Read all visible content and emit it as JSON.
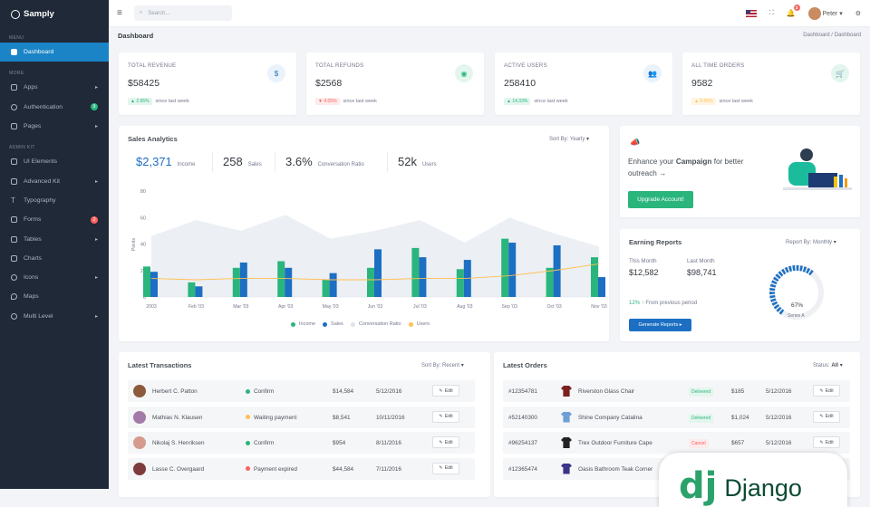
{
  "brand": "Samply",
  "sidebar": {
    "menu_label": "MENU",
    "more_label": "MORE",
    "admin_label": "ADMIN KIT",
    "dashboard": "Dashboard",
    "apps": "Apps",
    "authentication": "Authentication",
    "auth_badge": "9",
    "pages": "Pages",
    "ui_elements": "UI Elements",
    "advanced_kit": "Advanced Kit",
    "typography": "Typography",
    "forms": "Forms",
    "forms_badge": "2",
    "tables": "Tables",
    "charts": "Charts",
    "icons": "Icons",
    "maps": "Maps",
    "multi_level": "Multi Level"
  },
  "topbar": {
    "search_placeholder": "Search...",
    "notif_count": "3",
    "user": "Peter"
  },
  "page": {
    "title": "Dashboard",
    "crumb1": "Dashboard",
    "crumb_sep": "/",
    "crumb2": "Dashboard"
  },
  "stats": [
    {
      "label": "TOTAL REVENUE",
      "value": "$58425",
      "change": "2.65%",
      "since": "since last week",
      "color": "#2ab57d"
    },
    {
      "label": "TOTAL REFUNDS",
      "value": "$2568",
      "change": "4.05%",
      "since": "since last week",
      "color": "#fd625e"
    },
    {
      "label": "ACTIVE USERS",
      "value": "258410",
      "change": "14.33%",
      "since": "since last week",
      "color": "#2ab57d"
    },
    {
      "label": "ALL TIME ORDERS",
      "value": "9582",
      "change": "0.55%",
      "since": "since last week",
      "color": "#ffbf53"
    }
  ],
  "analytics": {
    "title": "Sales Analytics",
    "sort_label": "Sort By:",
    "sort_value": "Yearly",
    "kpis": [
      {
        "num": "$2,371",
        "label": "Income"
      },
      {
        "num": "258",
        "label": "Sales"
      },
      {
        "num": "3.6%",
        "label": "Conversation Ratio"
      },
      {
        "num": "52k",
        "label": "Users"
      }
    ],
    "legend": [
      "Income",
      "Sales",
      "Conversation Ratio",
      "Users"
    ]
  },
  "chart_data": {
    "type": "bar",
    "title": "Sales Analytics",
    "ylabel": "Points",
    "ylim": [
      0,
      80
    ],
    "yticks": [
      "0",
      "20",
      "40",
      "60",
      "80"
    ],
    "categories": [
      "2003",
      "Feb '03",
      "Mar '03",
      "Apr '03",
      "May '03",
      "Jun '03",
      "Jul '03",
      "Aug '03",
      "Sep '03",
      "Oct '03",
      "Nov '03"
    ],
    "series": [
      {
        "name": "Income",
        "type": "bar",
        "color": "#2ab57d",
        "values": [
          23,
          11,
          22,
          27,
          13,
          22,
          37,
          21,
          44,
          22,
          30
        ]
      },
      {
        "name": "Sales",
        "type": "bar",
        "color": "#1c6fc2",
        "values": [
          19,
          8,
          26,
          22,
          18,
          36,
          30,
          28,
          41,
          39,
          15
        ]
      },
      {
        "name": "Conversation Ratio",
        "type": "area",
        "color": "#eceff3",
        "values": [
          46,
          58,
          50,
          62,
          44,
          50,
          58,
          41,
          60,
          48,
          38
        ]
      },
      {
        "name": "Users",
        "type": "line",
        "color": "#ffbf53",
        "values": [
          14,
          13,
          14,
          14,
          13,
          13,
          14,
          14,
          16,
          20,
          25
        ]
      }
    ]
  },
  "campaign": {
    "text_pre": "Enhance your",
    "text_bold": "Campaign",
    "text_post": "for better outreach →",
    "button": "Upgrade Account!"
  },
  "earning": {
    "title": "Earning Reports",
    "sort_label": "Report By:",
    "sort_value": "Monthly",
    "this_month_label": "This Month",
    "this_month_value": "$12,582",
    "last_month_label": "Last Month",
    "last_month_value": "$98,741",
    "growth": "12% ↑",
    "growth_text": "From previous period",
    "button": "Generate Reports",
    "gauge_percent": 67,
    "gauge_label": "67%",
    "gauge_series": "Series A"
  },
  "transactions": {
    "title": "Latest Transactions",
    "sort_label": "Sort By:",
    "sort_value": "Recent",
    "rows": [
      {
        "name": "Herbert C. Patton",
        "status": "Confirm",
        "status_color": "#2ab57d",
        "amount": "$14,584",
        "date": "5/12/2016",
        "edit": "Edit",
        "avatar": "#8b5a3c"
      },
      {
        "name": "Mathias N. Klausen",
        "status": "Waiting payment",
        "status_color": "#ffbf53",
        "amount": "$8,541",
        "date": "10/11/2016",
        "edit": "Edit",
        "avatar": "#a47aa8"
      },
      {
        "name": "Nikolaj S. Henriksen",
        "status": "Confirm",
        "status_color": "#2ab57d",
        "amount": "$954",
        "date": "8/11/2016",
        "edit": "Edit",
        "avatar": "#d69b8e"
      },
      {
        "name": "Lasse C. Overgaard",
        "status": "Payment expired",
        "status_color": "#fd625e",
        "amount": "$44,584",
        "date": "7/11/2016",
        "edit": "Edit",
        "avatar": "#7d3b3b"
      }
    ]
  },
  "orders": {
    "title": "Latest Orders",
    "status_label": "Status:",
    "status_value": "All",
    "rows": [
      {
        "id": "#12354781",
        "product": "Riverston Glass Chair",
        "status": "Delivered",
        "status_color": "#2ab57d",
        "status_bg": "#e3f6ee",
        "price": "$185",
        "date": "5/12/2016",
        "edit": "Edit",
        "color": "#7a2020"
      },
      {
        "id": "#52140300",
        "product": "Shine Company Catalina",
        "status": "Delivered",
        "status_color": "#2ab57d",
        "status_bg": "#e3f6ee",
        "price": "$1,024",
        "date": "5/12/2016",
        "edit": "Edit",
        "color": "#6d9fd6"
      },
      {
        "id": "#96254137",
        "product": "Trex Outdoor Furniture Cape",
        "status": "Cancel",
        "status_color": "#fd625e",
        "status_bg": "#fdeaea",
        "price": "$657",
        "date": "5/12/2016",
        "edit": "Edit",
        "color": "#222222"
      },
      {
        "id": "#12365474",
        "product": "Oasis Bathroom Teak Corner",
        "status": "",
        "status_color": "#2ab57d",
        "status_bg": "#e3f6ee",
        "price": "",
        "date": "",
        "edit": "",
        "color": "#3a3588"
      }
    ]
  },
  "watermark": {
    "mark": "dj",
    "text": "Django"
  }
}
